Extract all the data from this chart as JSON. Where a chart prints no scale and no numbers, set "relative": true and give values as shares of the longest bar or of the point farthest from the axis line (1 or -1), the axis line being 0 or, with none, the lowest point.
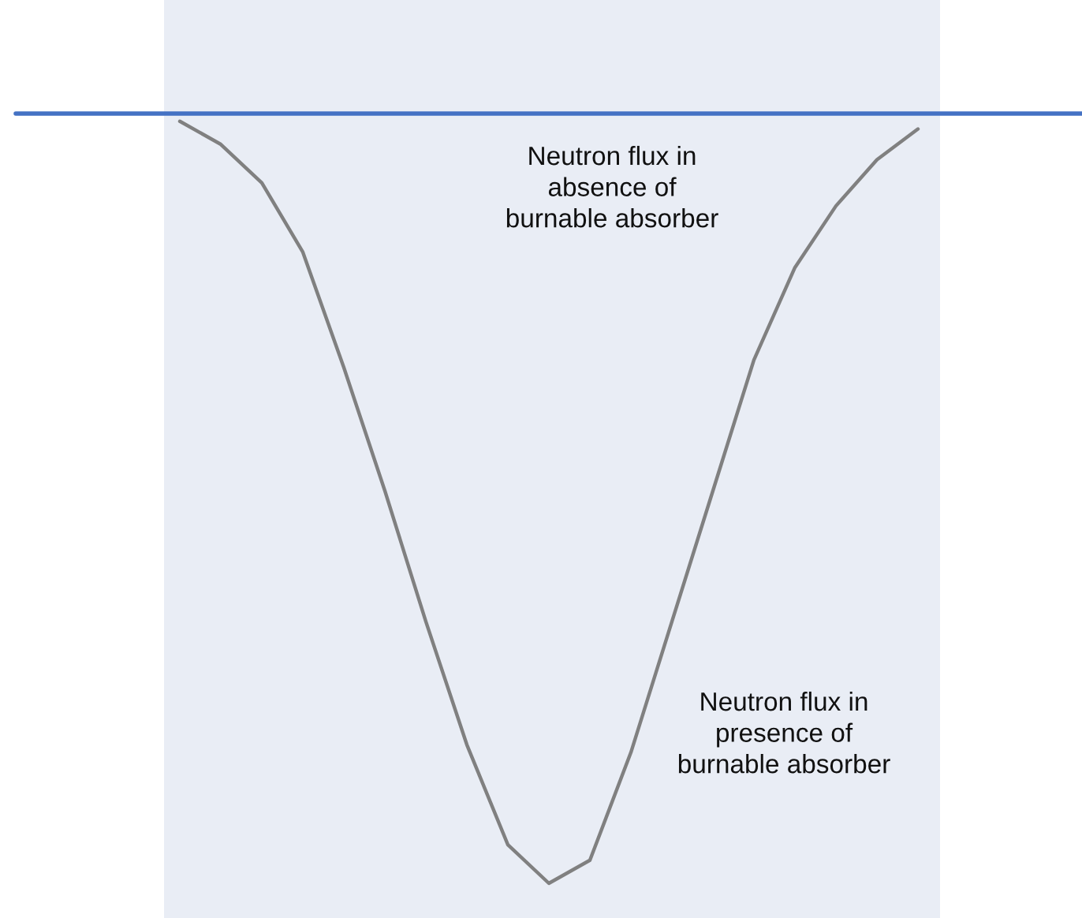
{
  "chart_data": {
    "type": "line",
    "relative": true,
    "categories": [
      null,
      null,
      null,
      null,
      null,
      null,
      null,
      null,
      null,
      null,
      null,
      null,
      null,
      null,
      null,
      null,
      null,
      null,
      null,
      null,
      null,
      null,
      null,
      null,
      null,
      null,
      null
    ],
    "series": [
      {
        "color": "#4472c4",
        "values": [
          1,
          1,
          1,
          1,
          1,
          1,
          1,
          1,
          1,
          1,
          1,
          1,
          1,
          1,
          1,
          1,
          1,
          1,
          1,
          1,
          1,
          1,
          1,
          1,
          1,
          1,
          1
        ]
      },
      {
        "color": "#808080",
        "values": [
          null,
          null,
          null,
          null,
          0.99,
          0.96,
          0.91,
          0.82,
          0.67,
          0.51,
          0.34,
          0.18,
          0.05,
          0,
          0.03,
          0.17,
          0.34,
          0.51,
          0.68,
          0.8,
          0.88,
          0.94,
          0.98,
          null,
          null,
          null,
          null
        ]
      }
    ],
    "annotations": [
      "Neutron flux in\nabsence of\nburnable absorber",
      "Neutron flux in\npresence of\nburnable absorber"
    ]
  }
}
